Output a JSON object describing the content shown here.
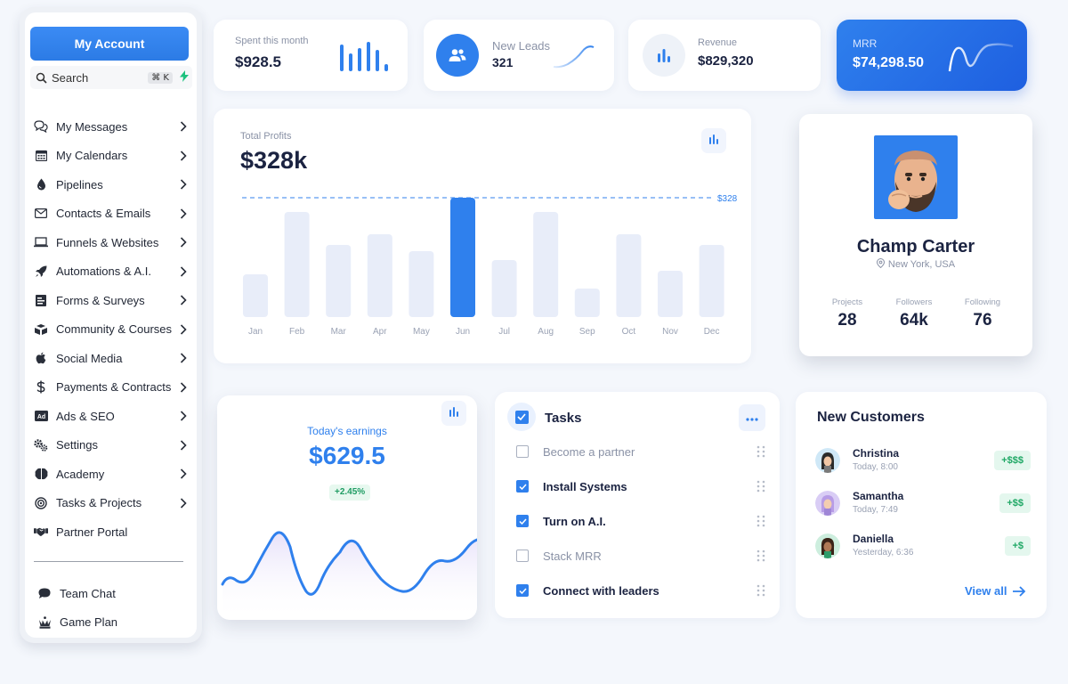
{
  "sidebar": {
    "account_button": "My Account",
    "search": {
      "label": "Search",
      "shortcut": "⌘ K"
    },
    "items": [
      {
        "label": "My Messages",
        "icon": "messages-icon"
      },
      {
        "label": "My Calendars",
        "icon": "calendar-icon"
      },
      {
        "label": "Pipelines",
        "icon": "drop-icon"
      },
      {
        "label": "Contacts & Emails",
        "icon": "mail-icon"
      },
      {
        "label": "Funnels & Websites",
        "icon": "laptop-icon"
      },
      {
        "label": "Automations & A.I.",
        "icon": "rocket-icon"
      },
      {
        "label": "Forms & Surveys",
        "icon": "form-icon"
      },
      {
        "label": "Community & Courses",
        "icon": "community-icon"
      },
      {
        "label": "Social Media",
        "icon": "apple-icon"
      },
      {
        "label": "Payments & Contracts",
        "icon": "dollar-icon"
      },
      {
        "label": "Ads & SEO",
        "icon": "ad-icon"
      },
      {
        "label": "Settings",
        "icon": "gears-icon"
      },
      {
        "label": "Academy",
        "icon": "brain-icon"
      },
      {
        "label": "Tasks & Projects",
        "icon": "target-icon"
      },
      {
        "label": "Partner Portal",
        "icon": "handshake-icon"
      }
    ],
    "bottom_items": [
      {
        "label": "Team Chat",
        "icon": "chat-icon"
      },
      {
        "label": "Game Plan",
        "icon": "chess-icon"
      }
    ]
  },
  "stats": {
    "spent": {
      "label": "Spent this month",
      "value": "$928.5"
    },
    "leads": {
      "label": "New Leads",
      "value": "321"
    },
    "revenue": {
      "label": "Revenue",
      "value": "$829,320"
    },
    "mrr": {
      "label": "MRR",
      "value": "$74,298.50"
    }
  },
  "profits": {
    "label": "Total Profits",
    "value": "$328k",
    "reference_label": "$328"
  },
  "chart_data": {
    "type": "bar",
    "categories": [
      "Jan",
      "Feb",
      "Mar",
      "Apr",
      "May",
      "Jun",
      "Jul",
      "Aug",
      "Sep",
      "Oct",
      "Nov",
      "Dec"
    ],
    "values": [
      48,
      118,
      81,
      93,
      74,
      134,
      64,
      118,
      32,
      93,
      52,
      81
    ],
    "highlight_index": 5,
    "reference_line": 134,
    "colors": {
      "bar": "#e8edf9",
      "highlight": "#2f80ed",
      "reference": "#5b9bf0"
    }
  },
  "profile": {
    "name": "Champ Carter",
    "location": "New York, USA",
    "stats": [
      {
        "label": "Projects",
        "value": "28"
      },
      {
        "label": "Followers",
        "value": "64k"
      },
      {
        "label": "Following",
        "value": "76"
      }
    ]
  },
  "earnings": {
    "label": "Today's earnings",
    "value": "$629.5",
    "change": "+2.45%"
  },
  "tasks": {
    "title": "Tasks",
    "items": [
      {
        "label": "Become a partner",
        "done": false
      },
      {
        "label": "Install Systems",
        "done": true
      },
      {
        "label": "Turn on A.I.",
        "done": true
      },
      {
        "label": "Stack MRR",
        "done": false
      },
      {
        "label": "Connect with leaders",
        "done": true
      }
    ]
  },
  "customers": {
    "title": "New Customers",
    "items": [
      {
        "name": "Christina",
        "time": "Today, 8:00",
        "tag": "+$$$"
      },
      {
        "name": "Samantha",
        "time": "Today, 7:49",
        "tag": "+$$"
      },
      {
        "name": "Daniella",
        "time": "Yesterday, 6:36",
        "tag": "+$"
      }
    ],
    "view_all": "View all"
  },
  "colors": {
    "accent": "#2f80ed",
    "positive": "#1fa865",
    "text_dark": "#1b2341",
    "text_muted": "#8a92a6"
  }
}
